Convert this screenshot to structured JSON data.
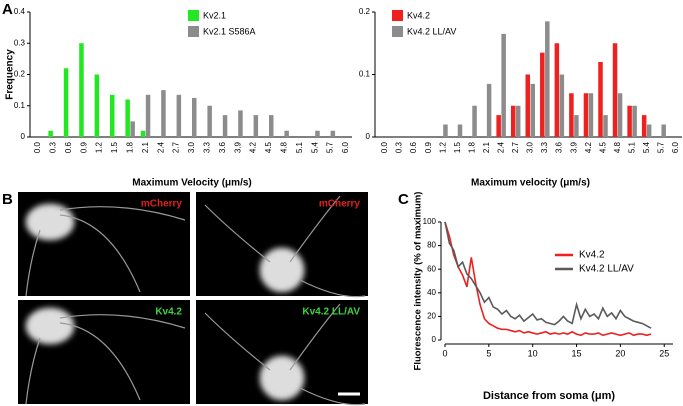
{
  "panel_labels": [
    "A",
    "B",
    "C"
  ],
  "images": [
    {
      "label": "mCherry",
      "color": "#e0201b"
    },
    {
      "label": "mCherry",
      "color": "#e0201b"
    },
    {
      "label": "Kv4.2",
      "color": "#3dd43d"
    },
    {
      "label": "Kv4.2 LL/AV",
      "color": "#3dd43d"
    }
  ],
  "chart_data": [
    {
      "type": "bar",
      "ylabel": "Frequency",
      "xlabel": "Maximum Velocity (μm/s)",
      "categories": [
        "0.0",
        "0.3",
        "0.6",
        "0.9",
        "1.2",
        "1.5",
        "1.8",
        "2.1",
        "2.4",
        "2.7",
        "3.0",
        "3.3",
        "3.6",
        "3.9",
        "4.2",
        "4.5",
        "4.8",
        "5.1",
        "5.4",
        "5.7",
        "6.0"
      ],
      "series": [
        {
          "name": "Kv2.1",
          "color": "#22e822",
          "values": [
            0,
            0.02,
            0.22,
            0.3,
            0.2,
            0.135,
            0.12,
            0.02,
            0,
            0,
            0,
            0,
            0,
            0,
            0,
            0,
            0,
            0,
            0,
            0,
            0
          ]
        },
        {
          "name": "Kv2.1 S586A",
          "color": "#8c8c8c",
          "values": [
            0,
            0,
            0,
            0,
            0,
            0,
            0.05,
            0.135,
            0.15,
            0.135,
            0.125,
            0.1,
            0.07,
            0.085,
            0.07,
            0.07,
            0.02,
            0,
            0.02,
            0.02,
            0
          ]
        }
      ],
      "ylim": [
        0,
        0.4
      ],
      "yticks": [
        0,
        0.1,
        0.2,
        0.3,
        0.4
      ]
    },
    {
      "type": "bar",
      "xlabel": "Maximum velocity (μm/s)",
      "categories": [
        "0.0",
        "0.3",
        "0.6",
        "0.9",
        "1.2",
        "1.5",
        "1.8",
        "2.1",
        "2.4",
        "2.7",
        "3.0",
        "3.3",
        "3.6",
        "3.9",
        "4.2",
        "4.5",
        "4.8",
        "5.1",
        "5.4",
        "5.7",
        "6.0"
      ],
      "series": [
        {
          "name": "Kv4.2",
          "color": "#ee2020",
          "values": [
            0,
            0,
            0,
            0,
            0,
            0,
            0,
            0,
            0.035,
            0.05,
            0.1,
            0.135,
            0.15,
            0.07,
            0.07,
            0.12,
            0.15,
            0.05,
            0.035,
            0,
            0
          ]
        },
        {
          "name": "Kv4.2 LL/AV",
          "color": "#8c8c8c",
          "values": [
            0,
            0,
            0,
            0,
            0.02,
            0.02,
            0.05,
            0.085,
            0.165,
            0.05,
            0.085,
            0.185,
            0.1,
            0.035,
            0.07,
            0.035,
            0.07,
            0.05,
            0.02,
            0.02,
            0
          ]
        }
      ],
      "ylim": [
        0,
        0.2
      ],
      "yticks": [
        0,
        0.1,
        0.2
      ]
    },
    {
      "type": "line",
      "ylabel": "Fluorescence intensity (% of maximum)",
      "xlabel": "Distance from soma (μm)",
      "x": [
        0,
        0.5,
        1,
        1.5,
        2,
        2.5,
        3,
        3.5,
        4,
        4.5,
        5,
        5.5,
        6,
        6.5,
        7,
        7.5,
        8,
        8.5,
        9,
        9.5,
        10,
        10.5,
        11,
        11.5,
        12,
        12.5,
        13,
        13.5,
        14,
        14.5,
        15,
        15.5,
        16,
        16.5,
        17,
        17.5,
        18,
        18.5,
        19,
        19.5,
        20,
        20.5,
        21,
        21.5,
        22,
        22.5,
        23,
        23.5
      ],
      "series": [
        {
          "name": "Kv4.2",
          "color": "#ee2020",
          "values": [
            100,
            88,
            72,
            62,
            55,
            45,
            70,
            48,
            30,
            18,
            14,
            12,
            10,
            9,
            9,
            8,
            7,
            8,
            6,
            7,
            6,
            5,
            6,
            7,
            5,
            6,
            5,
            6,
            5,
            7,
            5,
            4,
            6,
            5,
            5,
            6,
            4,
            5,
            6,
            5,
            4,
            5,
            6,
            4,
            5,
            5,
            4,
            5
          ]
        },
        {
          "name": "Kv4.2 LL/AV",
          "color": "#5a5a5a",
          "values": [
            100,
            82,
            76,
            62,
            66,
            56,
            52,
            46,
            40,
            32,
            36,
            28,
            26,
            22,
            25,
            20,
            18,
            21,
            16,
            19,
            22,
            17,
            18,
            15,
            14,
            13,
            16,
            20,
            16,
            14,
            30,
            18,
            26,
            20,
            22,
            18,
            27,
            20,
            23,
            18,
            25,
            20,
            18,
            16,
            15,
            14,
            12,
            10
          ]
        }
      ],
      "xlim": [
        0,
        26
      ],
      "xticks": [
        0,
        5,
        10,
        15,
        20,
        25
      ],
      "ylim": [
        0,
        100
      ],
      "yticks": [
        0,
        20,
        40,
        60,
        80,
        100
      ]
    }
  ]
}
